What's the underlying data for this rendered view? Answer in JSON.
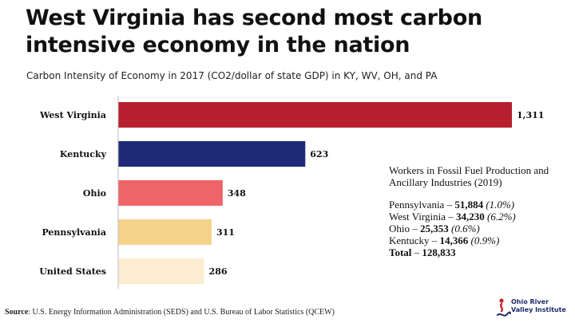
{
  "header": {
    "title": "West Virginia has second most carbon intensive economy in the nation",
    "subtitle": "Carbon Intensity of Economy in 2017 (CO2/dollar of state GDP) in KY, WV, OH, and PA"
  },
  "chart_data": {
    "type": "bar",
    "orientation": "horizontal",
    "title": "West Virginia has second most carbon intensive economy in the nation",
    "subtitle": "Carbon Intensity of Economy in 2017 (CO2/dollar of state GDP) in KY, WV, OH, and PA",
    "categories": [
      "West Virginia",
      "Kentucky",
      "Ohio",
      "Pennsylvania",
      "United States"
    ],
    "values": [
      1311,
      623,
      348,
      311,
      286
    ],
    "value_labels": [
      "1,311",
      "623",
      "348",
      "311",
      "286"
    ],
    "colors": [
      "#b81f2e",
      "#1c2a78",
      "#ee6468",
      "#f6d38a",
      "#fcecd1"
    ],
    "xlim": [
      0,
      1311
    ],
    "grid": false,
    "xlabel": "",
    "ylabel": ""
  },
  "info_box": {
    "heading": "Workers in Fossil Fuel Production and Ancillary Industries (2019)",
    "rows": [
      {
        "name": "Pennsylvania",
        "sep": " – ",
        "value": "51,884",
        "pct": "(1.0%)"
      },
      {
        "name": "West Virginia",
        "sep": " – ",
        "value": "34,230",
        "pct": "(6.2%)"
      },
      {
        "name": "Ohio",
        "sep": " – ",
        "value": "25,353",
        "pct": "(0.6%)"
      },
      {
        "name": "Kentucky",
        "sep": " – ",
        "value": "14,366",
        "pct": "(0.9%)"
      }
    ],
    "total": {
      "name": "Total",
      "sep": " – ",
      "value": "128,833"
    }
  },
  "footer": {
    "source_label": "Source",
    "source_text": ": U.S. Energy Information Administration (SEDS) and U.S. Bureau of Labor Statistics (QCEW)",
    "logo_line1": "Ohio River",
    "logo_line2": "Valley Institute"
  }
}
